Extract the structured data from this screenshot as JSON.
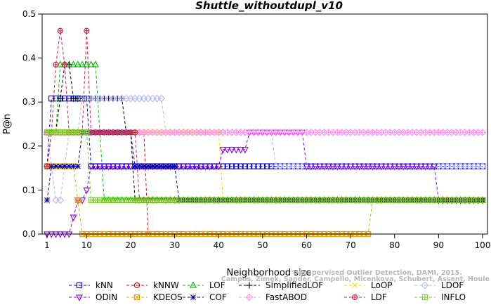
{
  "chart_data": {
    "type": "line",
    "title": "Shuttle_withoutdupl_v10",
    "xlabel": "Neighborhood size",
    "ylabel": "P@n",
    "xlim": [
      1,
      100
    ],
    "ylim": [
      0,
      0.5
    ],
    "xticks": [
      1,
      10,
      20,
      30,
      40,
      50,
      60,
      70,
      80,
      90,
      100
    ],
    "yticks": [
      "0.0",
      "0.1",
      "0.2",
      "0.3",
      "0.4",
      "0.5"
    ],
    "grid": false,
    "legend_position": "bottom",
    "credit": [
      "Campos, Zimek, Sander, Campello, Micenkova, Schubert, Assent, Houle",
      "Unsupervised Outlier Detection, DAMI, 2015."
    ],
    "series": [
      {
        "name": "kNN",
        "color": "#0000cc",
        "marker": "square",
        "points": [
          [
            1,
            0.154
          ],
          [
            2,
            0.308
          ],
          [
            10,
            0.308
          ],
          [
            11,
            0.154
          ],
          [
            100,
            0.154
          ]
        ]
      },
      {
        "name": "kNNW",
        "color": "#dd0000",
        "marker": "circle",
        "points": [
          [
            1,
            0.231
          ],
          [
            2,
            0.231
          ],
          [
            3,
            0.231
          ],
          [
            4,
            0.231
          ],
          [
            5,
            0.231
          ],
          [
            6,
            0.231
          ],
          [
            7,
            0.231
          ],
          [
            8,
            0.231
          ],
          [
            9,
            0.231
          ],
          [
            10,
            0.231
          ],
          [
            11,
            0.231
          ],
          [
            15,
            0.231
          ],
          [
            20,
            0.231
          ],
          [
            21,
            0.231
          ],
          [
            22,
            0.231
          ],
          [
            23,
            0.231
          ],
          [
            24,
            0.0
          ]
        ]
      },
      {
        "name": "LOF",
        "color": "#00bb00",
        "marker": "triangle",
        "points": [
          [
            1,
            0.231
          ],
          [
            2,
            0.231
          ],
          [
            3,
            0.231
          ],
          [
            4,
            0.385
          ],
          [
            12,
            0.385
          ],
          [
            13,
            0.231
          ],
          [
            14,
            0.077
          ],
          [
            100,
            0.077
          ]
        ]
      },
      {
        "name": "SimplifiedLOF",
        "color": "#000000",
        "marker": "plus",
        "points": [
          [
            1,
            0.154
          ],
          [
            2,
            0.231
          ],
          [
            3,
            0.231
          ],
          [
            4,
            0.308
          ],
          [
            5,
            0.385
          ],
          [
            6,
            0.385
          ],
          [
            7,
            0.308
          ],
          [
            18,
            0.308
          ],
          [
            19,
            0.231
          ],
          [
            20,
            0.231
          ],
          [
            21,
            0.077
          ],
          [
            100,
            0.077
          ]
        ]
      },
      {
        "name": "LoOP",
        "color": "#f2e200",
        "marker": "x",
        "points": [
          [
            1,
            0.231
          ],
          [
            20,
            0.231
          ],
          [
            28,
            0.231
          ],
          [
            29,
            0.231
          ],
          [
            30,
            0.231
          ],
          [
            40,
            0.231
          ],
          [
            41,
            0.077
          ],
          [
            100,
            0.077
          ]
        ]
      },
      {
        "name": "LDOF",
        "color": "#b0b8ff",
        "marker": "diamond",
        "points": [
          [
            1,
            0.231
          ],
          [
            2,
            0.154
          ],
          [
            3,
            0.077
          ],
          [
            4,
            0.077
          ],
          [
            5,
            0.154
          ],
          [
            6,
            0.231
          ],
          [
            8,
            0.231
          ],
          [
            9,
            0.308
          ],
          [
            27,
            0.308
          ],
          [
            28,
            0.231
          ],
          [
            52,
            0.231
          ],
          [
            53,
            0.154
          ],
          [
            100,
            0.154
          ]
        ]
      },
      {
        "name": "ODIN",
        "color": "#8800ee",
        "marker": "triangle-down",
        "points": [
          [
            1,
            0.0
          ],
          [
            6,
            0.0
          ],
          [
            7,
            0.038
          ],
          [
            8,
            0.077
          ],
          [
            9,
            0.077
          ],
          [
            10,
            0.1
          ],
          [
            11,
            0.154
          ],
          [
            40,
            0.154
          ],
          [
            41,
            0.192
          ],
          [
            46,
            0.192
          ],
          [
            47,
            0.231
          ],
          [
            59,
            0.231
          ],
          [
            60,
            0.154
          ],
          [
            89,
            0.154
          ],
          [
            90,
            0.077
          ],
          [
            100,
            0.077
          ]
        ]
      },
      {
        "name": "KDEOS",
        "color": "#f0a000",
        "marker": "square-x",
        "points": [
          [
            1,
            0.154
          ],
          [
            2,
            0.154
          ],
          [
            3,
            0.154
          ],
          [
            4,
            0.154
          ],
          [
            5,
            0.154
          ],
          [
            6,
            0.154
          ],
          [
            7,
            0.154
          ],
          [
            8,
            0.077
          ],
          [
            9,
            0.0
          ],
          [
            74,
            0.0
          ],
          [
            75,
            0.077
          ],
          [
            100,
            0.077
          ]
        ]
      },
      {
        "name": "COF",
        "color": "#000099",
        "marker": "star",
        "points": [
          [
            1,
            0.077
          ],
          [
            2,
            0.154
          ],
          [
            3,
            0.154
          ],
          [
            4,
            0.154
          ],
          [
            5,
            0.154
          ],
          [
            6,
            0.154
          ],
          [
            7,
            0.154
          ],
          [
            8,
            0.154
          ],
          [
            9,
            0.231
          ],
          [
            20,
            0.231
          ],
          [
            21,
            0.154
          ],
          [
            30,
            0.154
          ],
          [
            31,
            0.077
          ],
          [
            100,
            0.077
          ]
        ]
      },
      {
        "name": "FastABOD",
        "color": "#ff99ee",
        "marker": "diamond-plus",
        "points": [
          [
            1,
            0.231
          ],
          [
            30,
            0.231
          ],
          [
            31,
            0.231
          ],
          [
            100,
            0.231
          ]
        ]
      },
      {
        "name": "LDF",
        "color": "#cc2244",
        "marker": "circle-plus",
        "points": [
          [
            1,
            0.154
          ],
          [
            2,
            0.231
          ],
          [
            3,
            0.385
          ],
          [
            4,
            0.462
          ],
          [
            5,
            0.385
          ],
          [
            6,
            0.231
          ],
          [
            9,
            0.231
          ],
          [
            10,
            0.462
          ],
          [
            11,
            0.231
          ],
          [
            15,
            0.231
          ],
          [
            21,
            0.231
          ],
          [
            22,
            0.077
          ],
          [
            100,
            0.077
          ]
        ]
      },
      {
        "name": "INFLO",
        "color": "#77cc22",
        "marker": "square-cross",
        "points": [
          [
            1,
            0.231
          ],
          [
            2,
            0.231
          ],
          [
            3,
            0.231
          ],
          [
            4,
            0.231
          ],
          [
            5,
            0.231
          ],
          [
            6,
            0.231
          ],
          [
            7,
            0.231
          ],
          [
            8,
            0.231
          ],
          [
            9,
            0.231
          ],
          [
            10,
            0.231
          ],
          [
            11,
            0.077
          ],
          [
            100,
            0.077
          ]
        ]
      }
    ]
  }
}
